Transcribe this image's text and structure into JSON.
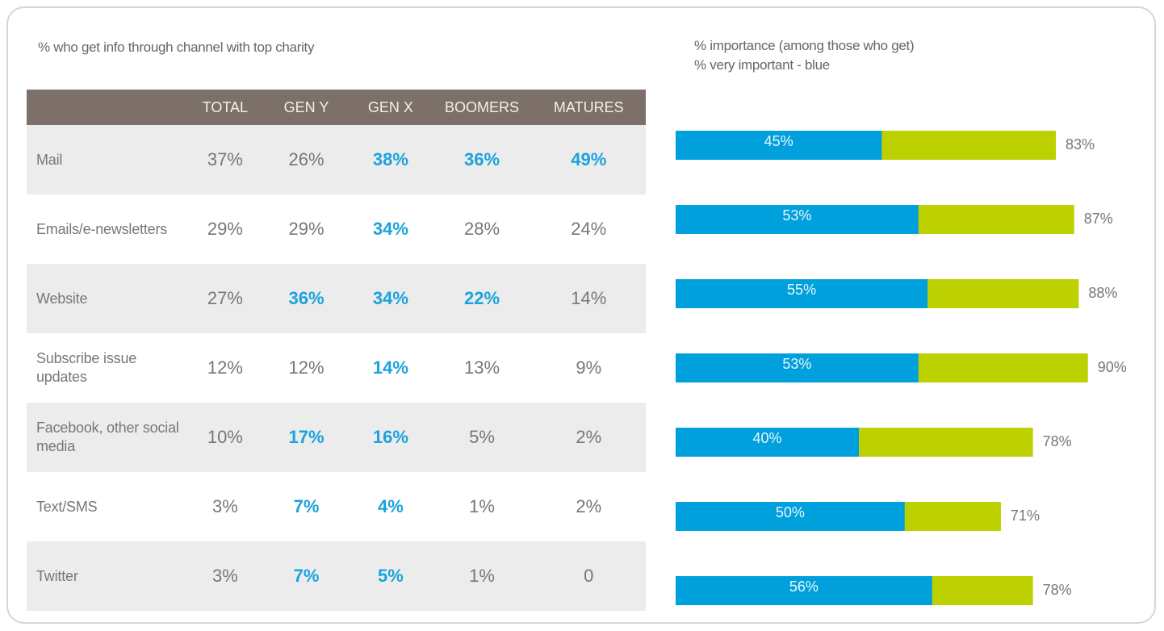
{
  "table": {
    "title": "% who get info through channel with top charity",
    "headers": [
      "TOTAL",
      "GEN Y",
      "GEN X",
      "BOOMERS",
      "MATURES"
    ],
    "highlight_color": "#1aa3dd",
    "rows": [
      {
        "label": "Mail",
        "values": [
          "37%",
          "26%",
          "38%",
          "36%",
          "49%"
        ],
        "highlight": [
          false,
          false,
          true,
          true,
          true
        ]
      },
      {
        "label": "Emails/e-newsletters",
        "values": [
          "29%",
          "29%",
          "34%",
          "28%",
          "24%"
        ],
        "highlight": [
          false,
          false,
          true,
          false,
          false
        ]
      },
      {
        "label": "Website",
        "values": [
          "27%",
          "36%",
          "34%",
          "22%",
          "14%"
        ],
        "highlight": [
          false,
          true,
          true,
          true,
          false
        ]
      },
      {
        "label": "Subscribe issue updates",
        "values": [
          "12%",
          "12%",
          "14%",
          "13%",
          "9%"
        ],
        "highlight": [
          false,
          false,
          true,
          false,
          false
        ]
      },
      {
        "label": "Facebook, other social media",
        "values": [
          "10%",
          "17%",
          "16%",
          "5%",
          "2%"
        ],
        "highlight": [
          false,
          true,
          true,
          false,
          false
        ]
      },
      {
        "label": "Text/SMS",
        "values": [
          "3%",
          "7%",
          "4%",
          "1%",
          "2%"
        ],
        "highlight": [
          false,
          true,
          true,
          false,
          false
        ]
      },
      {
        "label": "Twitter",
        "values": [
          "3%",
          "7%",
          "5%",
          "1%",
          "0"
        ],
        "highlight": [
          false,
          true,
          true,
          false,
          false
        ]
      }
    ]
  },
  "chart_data": {
    "type": "bar",
    "title": "% importance (among those who get)",
    "subtitle": "% very important - blue",
    "series": [
      {
        "color": "#00a0dc",
        "values": [
          45,
          53,
          55,
          53,
          40,
          50,
          56
        ],
        "value_labels": [
          "45%",
          "53%",
          "55%",
          "53%",
          "40%",
          "50%",
          "56%"
        ]
      },
      {
        "color": "#bdd000",
        "values": [
          83,
          87,
          88,
          90,
          78,
          71,
          78
        ],
        "value_labels": [
          "83%",
          "87%",
          "88%",
          "90%",
          "78%",
          "71%",
          "78%"
        ]
      }
    ]
  }
}
